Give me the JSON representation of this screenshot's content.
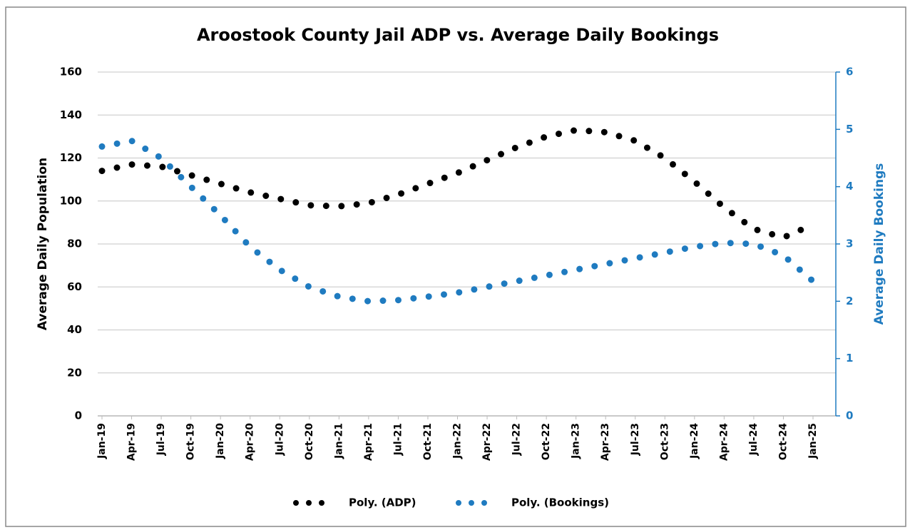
{
  "chart_data": {
    "type": "line",
    "title": "Aroostook County Jail ADP vs. Average Daily Bookings",
    "y_label": "Average Daily Population",
    "y2_label": "Average Daily Bookings",
    "categories": [
      "Jan-19",
      "Apr-19",
      "Jul-19",
      "Oct-19",
      "Jan-20",
      "Apr-20",
      "Jul-20",
      "Oct-20",
      "Jan-21",
      "Apr-21",
      "Jul-21",
      "Oct-21",
      "Jan-22",
      "Apr-22",
      "Jul-22",
      "Oct-22",
      "Jan-23",
      "Apr-23",
      "Jul-23",
      "Oct-23",
      "Jan-24",
      "Apr-24",
      "Jul-24",
      "Oct-24",
      "Jan-25"
    ],
    "series": [
      {
        "name": "Poly. (ADP)",
        "color": "#000000",
        "axis": "y",
        "values": [
          114,
          117,
          116,
          112,
          108,
          104,
          101,
          98,
          97.5,
          99,
          103,
          108,
          113,
          119,
          125,
          130,
          133,
          132,
          128,
          120,
          109,
          97,
          87,
          83,
          89
        ]
      },
      {
        "name": "Poly. (Bookings)",
        "color": "#1f7bc0",
        "axis": "y2",
        "values": [
          4.7,
          4.8,
          4.5,
          4.0,
          3.5,
          2.95,
          2.55,
          2.25,
          2.08,
          2.0,
          2.02,
          2.08,
          2.15,
          2.25,
          2.35,
          2.45,
          2.55,
          2.65,
          2.75,
          2.85,
          2.95,
          3.02,
          3.0,
          2.8,
          2.35
        ]
      }
    ],
    "ylim": [
      0,
      160
    ],
    "yticks": [
      0,
      20,
      40,
      60,
      80,
      100,
      120,
      140,
      160
    ],
    "y2lim": [
      0,
      6
    ],
    "y2ticks": [
      0,
      1,
      2,
      3,
      4,
      5,
      6
    ],
    "grid": true,
    "legend": "bottom"
  }
}
